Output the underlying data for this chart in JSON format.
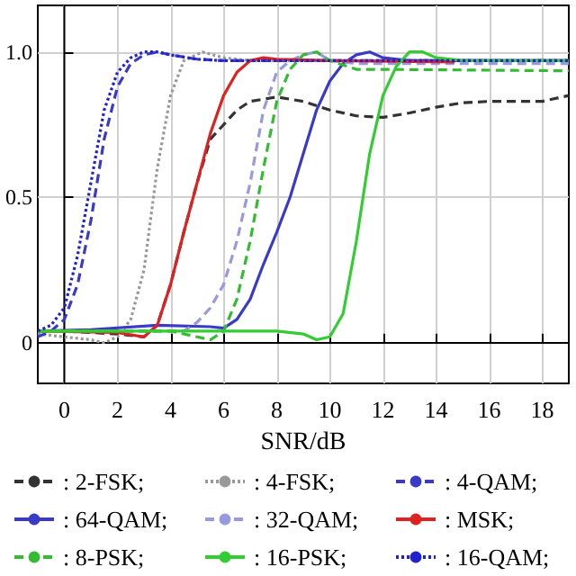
{
  "chart_data": {
    "type": "line",
    "xlabel": "SNR/dB",
    "xlim": [
      -1,
      19
    ],
    "xticks": [
      0,
      2,
      4,
      6,
      8,
      10,
      12,
      14,
      16,
      18
    ],
    "ylim": [
      -0.14,
      1.16
    ],
    "yticks": [
      0,
      {
        "value": 0.5,
        "label": "0.5"
      },
      {
        "value": 1,
        "label": "1.0"
      }
    ],
    "grid": true,
    "legend": "bottom",
    "marker": "none",
    "series": [
      {
        "name": ": 2-FSK;",
        "color": "#333333",
        "line_style": "dashed",
        "x": [
          -1,
          0,
          1,
          2,
          3,
          3.5,
          4,
          4.5,
          5,
          5.5,
          6,
          6.5,
          7,
          8,
          9,
          10,
          11,
          12,
          13,
          14,
          15,
          16,
          17,
          18,
          19
        ],
        "values": [
          0.04,
          0.04,
          0.035,
          0.03,
          0.02,
          0.06,
          0.2,
          0.38,
          0.55,
          0.7,
          0.75,
          0.8,
          0.83,
          0.845,
          0.83,
          0.8,
          0.78,
          0.775,
          0.79,
          0.81,
          0.825,
          0.83,
          0.83,
          0.83,
          0.85
        ]
      },
      {
        "name": ": 4-FSK;",
        "color": "#999999",
        "line_style": "dotted",
        "x": [
          -1,
          0,
          1,
          1.5,
          2,
          2.5,
          3,
          3.5,
          4,
          4.5,
          5.2,
          6,
          7,
          19
        ],
        "values": [
          0.03,
          0.02,
          0.01,
          0.0,
          0.02,
          0.08,
          0.25,
          0.6,
          0.85,
          0.97,
          1.0,
          0.98,
          0.97,
          0.97
        ]
      },
      {
        "name": ": 4-QAM;",
        "color": "#3a3ac8",
        "line_style": "dashed",
        "x": [
          -1,
          -0.5,
          0,
          0.5,
          1,
          1.5,
          2,
          2.5,
          3,
          3.5,
          4,
          5,
          6,
          19
        ],
        "values": [
          0.02,
          0.04,
          0.08,
          0.2,
          0.42,
          0.7,
          0.88,
          0.96,
          0.99,
          1.0,
          0.99,
          0.975,
          0.97,
          0.97
        ]
      },
      {
        "name": ": 64-QAM;",
        "color": "#3a3ac8",
        "line_style": "solid",
        "x": [
          -1,
          1,
          3.5,
          5.5,
          6,
          6.5,
          7,
          7.5,
          8,
          8.5,
          9,
          9.5,
          10,
          10.5,
          11,
          11.5,
          12,
          13,
          19
        ],
        "values": [
          0.04,
          0.045,
          0.06,
          0.055,
          0.05,
          0.08,
          0.15,
          0.27,
          0.38,
          0.5,
          0.65,
          0.8,
          0.9,
          0.96,
          0.99,
          1.0,
          0.98,
          0.97,
          0.97
        ]
      },
      {
        "name": ": 32-QAM;",
        "color": "#9999dd",
        "line_style": "dashed",
        "x": [
          -1,
          4.5,
          5,
          5.5,
          6,
          6.5,
          7,
          7.5,
          8,
          8.5,
          9,
          9.5,
          10,
          11,
          19
        ],
        "values": [
          0.04,
          0.04,
          0.07,
          0.12,
          0.2,
          0.35,
          0.55,
          0.8,
          0.93,
          0.97,
          0.99,
          1.0,
          0.97,
          0.96,
          0.96
        ]
      },
      {
        "name": ": MSK;",
        "color": "#dd2222",
        "line_style": "solid",
        "x": [
          -1,
          2,
          3,
          3.5,
          4,
          4.5,
          5,
          5.5,
          6,
          6.5,
          7,
          7.5,
          8,
          10,
          14.7
        ],
        "values": [
          0.04,
          0.035,
          0.02,
          0.06,
          0.2,
          0.38,
          0.55,
          0.72,
          0.85,
          0.93,
          0.97,
          0.98,
          0.975,
          0.97,
          0.965
        ]
      },
      {
        "name": ": 8-PSK;",
        "color": "#33bb33",
        "line_style": "dashed",
        "x": [
          -1,
          4,
          5,
          5.5,
          6,
          6.5,
          7,
          7.5,
          8,
          8.5,
          9,
          9.5,
          10,
          11,
          12,
          19
        ],
        "values": [
          0.04,
          0.04,
          0.02,
          0.01,
          0.04,
          0.15,
          0.35,
          0.6,
          0.83,
          0.94,
          0.99,
          1.0,
          0.97,
          0.94,
          0.94,
          0.935
        ]
      },
      {
        "name": ": 16-PSK;",
        "color": "#33cc33",
        "line_style": "solid",
        "x": [
          -1,
          8,
          9,
          9.5,
          10,
          10.5,
          11,
          11.5,
          12,
          12.5,
          13,
          13.5,
          14,
          15,
          19
        ],
        "values": [
          0.04,
          0.04,
          0.03,
          0.01,
          0.02,
          0.1,
          0.35,
          0.65,
          0.85,
          0.95,
          1.0,
          1.0,
          0.98,
          0.97,
          0.97
        ]
      },
      {
        "name": ": 16-QAM;",
        "color": "#2222cc",
        "line_style": "dotted",
        "x": [
          -1,
          -0.5,
          0,
          0.5,
          1,
          1.5,
          2,
          2.5,
          3,
          3.5,
          4,
          5,
          6,
          19
        ],
        "values": [
          0.04,
          0.06,
          0.12,
          0.3,
          0.55,
          0.8,
          0.93,
          0.98,
          1.0,
          1.0,
          0.99,
          0.975,
          0.97,
          0.97
        ]
      }
    ]
  }
}
